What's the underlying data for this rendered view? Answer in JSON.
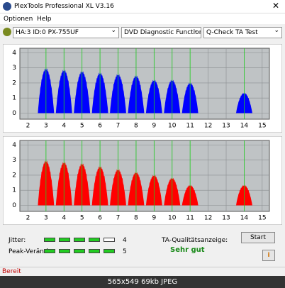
{
  "window": {
    "title": "PlexTools Professional XL V3.16"
  },
  "menu": [
    "Optionen",
    "Help"
  ],
  "toolbar": {
    "drive": "HA:3 ID:0 PX-755UF",
    "function": "DVD Diagnostic Functions",
    "test": "Q-Check TA Test"
  },
  "charts": [
    {
      "type": "histogram",
      "color": "#0000ff",
      "xlim": [
        1.55,
        15.4
      ],
      "ylim": [
        -0.4,
        4.3
      ],
      "xticks": [
        2,
        3,
        4,
        5,
        6,
        7,
        8,
        9,
        10,
        11,
        12,
        13,
        14,
        15
      ],
      "yticks": [
        0,
        1,
        2,
        3,
        4
      ],
      "markers": [
        3,
        4,
        5,
        6,
        7,
        8,
        9,
        10,
        11,
        14
      ],
      "peaks": [
        {
          "x": 3,
          "height": 3.1
        },
        {
          "x": 4,
          "height": 3.0
        },
        {
          "x": 5,
          "height": 2.9
        },
        {
          "x": 6,
          "height": 2.8
        },
        {
          "x": 7,
          "height": 2.7
        },
        {
          "x": 8,
          "height": 2.6
        },
        {
          "x": 9,
          "height": 2.3
        },
        {
          "x": 10,
          "height": 2.3
        },
        {
          "x": 11,
          "height": 2.1
        },
        {
          "x": 14,
          "height": 1.4
        }
      ]
    },
    {
      "type": "histogram",
      "color": "#ff0000",
      "xlim": [
        1.55,
        15.4
      ],
      "ylim": [
        -0.4,
        4.3
      ],
      "xticks": [
        2,
        3,
        4,
        5,
        6,
        7,
        8,
        9,
        10,
        11,
        12,
        13,
        14,
        15
      ],
      "yticks": [
        0,
        1,
        2,
        3,
        4
      ],
      "markers": [
        3,
        4,
        5,
        6,
        7,
        8,
        9,
        10,
        11,
        14
      ],
      "peaks": [
        {
          "x": 3,
          "height": 3.1
        },
        {
          "x": 4,
          "height": 3.0
        },
        {
          "x": 5,
          "height": 2.9
        },
        {
          "x": 6,
          "height": 2.7
        },
        {
          "x": 7,
          "height": 2.5
        },
        {
          "x": 8,
          "height": 2.3
        },
        {
          "x": 9,
          "height": 2.1
        },
        {
          "x": 10,
          "height": 1.9
        },
        {
          "x": 11,
          "height": 1.4
        },
        {
          "x": 14,
          "height": 1.4
        }
      ]
    }
  ],
  "results": {
    "jitter": {
      "label": "Jitter:",
      "value": 4
    },
    "peak": {
      "label": "Peak-Veränd:",
      "value": 5
    },
    "quality_label": "TA-Qualitätsanzeige:",
    "quality": "Sehr gut",
    "start": "Start"
  },
  "status": "Bereit",
  "caption": "565x549 69kb JPEG"
}
